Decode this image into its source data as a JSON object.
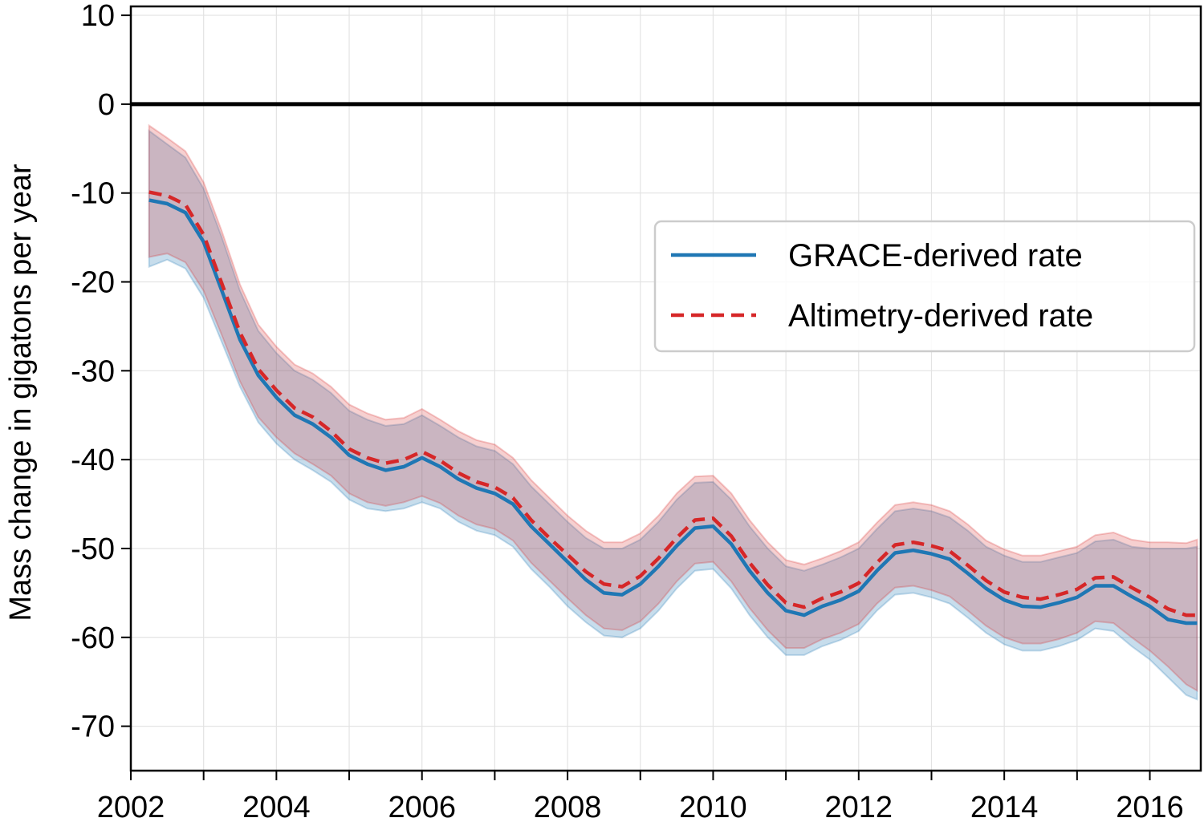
{
  "chart_data": {
    "type": "line",
    "xlabel": "",
    "ylabel": "Mass change in gigatons per year",
    "xlim": [
      2002,
      2016.7
    ],
    "ylim": [
      -75,
      11
    ],
    "x_ticks": [
      2002,
      2004,
      2006,
      2008,
      2010,
      2012,
      2014,
      2016
    ],
    "x_tick_labels": [
      "2002",
      "2004",
      "2006",
      "2008",
      "2010",
      "2012",
      "2014",
      "2016"
    ],
    "x_minor_ticks": [
      2003,
      2005,
      2007,
      2009,
      2011,
      2013,
      2015
    ],
    "y_ticks": [
      10,
      0,
      -10,
      -20,
      -30,
      -40,
      -50,
      -60,
      -70
    ],
    "y_tick_labels": [
      "10",
      "0",
      "-10",
      "-20",
      "-30",
      "-40",
      "-50",
      "-60",
      "-70"
    ],
    "grid": true,
    "zero_line": 0,
    "legend": {
      "position": "right",
      "entries": [
        "GRACE-derived rate",
        "Altimetry-derived rate"
      ]
    },
    "x": [
      2002.25,
      2002.5,
      2002.75,
      2003.0,
      2003.25,
      2003.5,
      2003.75,
      2004.0,
      2004.25,
      2004.5,
      2004.75,
      2005.0,
      2005.25,
      2005.5,
      2005.75,
      2006.0,
      2006.25,
      2006.5,
      2006.75,
      2007.0,
      2007.25,
      2007.5,
      2007.75,
      2008.0,
      2008.25,
      2008.5,
      2008.75,
      2009.0,
      2009.25,
      2009.5,
      2009.75,
      2010.0,
      2010.25,
      2010.5,
      2010.75,
      2011.0,
      2011.25,
      2011.5,
      2011.75,
      2012.0,
      2012.25,
      2012.5,
      2012.75,
      2013.0,
      2013.25,
      2013.5,
      2013.75,
      2014.0,
      2014.25,
      2014.5,
      2014.75,
      2015.0,
      2015.25,
      2015.5,
      2015.75,
      2016.0,
      2016.25,
      2016.5,
      2016.65
    ],
    "series": [
      {
        "name": "GRACE-derived rate",
        "color": "#1f77b4",
        "style": "solid",
        "values": [
          -10.8,
          -11.2,
          -12.2,
          -15.5,
          -21.0,
          -26.5,
          -30.5,
          -33.0,
          -35.0,
          -36.0,
          -37.5,
          -39.5,
          -40.5,
          -41.2,
          -40.8,
          -39.8,
          -40.8,
          -42.2,
          -43.2,
          -43.8,
          -45.0,
          -47.5,
          -49.5,
          -51.5,
          -53.5,
          -55.0,
          -55.2,
          -54.0,
          -52.0,
          -49.7,
          -47.7,
          -47.5,
          -49.5,
          -52.5,
          -55.0,
          -57.0,
          -57.5,
          -56.5,
          -55.8,
          -54.8,
          -52.5,
          -50.5,
          -50.2,
          -50.6,
          -51.2,
          -52.8,
          -54.5,
          -55.8,
          -56.5,
          -56.6,
          -56.1,
          -55.5,
          -54.2,
          -54.2,
          -55.4,
          -56.5,
          -58.0,
          -58.4,
          -58.4
        ],
        "lower": [
          -18.3,
          -17.5,
          -18.5,
          -21.8,
          -26.8,
          -31.8,
          -35.8,
          -38.2,
          -40.0,
          -41.2,
          -42.5,
          -44.5,
          -45.5,
          -45.8,
          -45.5,
          -44.8,
          -45.5,
          -47.0,
          -48.0,
          -48.5,
          -49.8,
          -52.3,
          -54.3,
          -56.5,
          -58.3,
          -59.8,
          -60.0,
          -59.0,
          -57.0,
          -54.5,
          -52.5,
          -52.3,
          -54.5,
          -57.5,
          -60.0,
          -62.0,
          -62.0,
          -61.0,
          -60.3,
          -59.3,
          -57.0,
          -55.2,
          -55.0,
          -55.5,
          -56.2,
          -57.8,
          -59.5,
          -60.8,
          -61.5,
          -61.5,
          -61.0,
          -60.3,
          -59.0,
          -59.3,
          -61.0,
          -62.5,
          -64.5,
          -66.5,
          -67.0
        ],
        "upper": [
          -3.0,
          -4.5,
          -6.0,
          -9.5,
          -15.0,
          -21.0,
          -25.5,
          -28.0,
          -30.0,
          -31.0,
          -32.5,
          -34.5,
          -35.5,
          -36.2,
          -36.0,
          -35.0,
          -36.2,
          -37.5,
          -38.5,
          -39.0,
          -40.5,
          -43.0,
          -45.0,
          -47.0,
          -48.8,
          -50.0,
          -50.0,
          -49.0,
          -47.0,
          -44.5,
          -42.6,
          -42.5,
          -44.5,
          -47.5,
          -50.0,
          -52.0,
          -52.5,
          -51.8,
          -51.0,
          -50.0,
          -47.8,
          -45.8,
          -45.5,
          -45.8,
          -46.5,
          -48.0,
          -49.8,
          -50.8,
          -51.5,
          -51.5,
          -51.0,
          -50.5,
          -49.2,
          -49.0,
          -49.8,
          -50.0,
          -50.0,
          -50.0,
          -49.8
        ]
      },
      {
        "name": "Altimetry-derived rate",
        "color": "#d62728",
        "style": "dashed",
        "values": [
          -9.9,
          -10.3,
          -11.3,
          -14.7,
          -20.2,
          -25.7,
          -29.8,
          -32.2,
          -34.2,
          -35.2,
          -36.8,
          -38.8,
          -39.8,
          -40.4,
          -40.0,
          -39.1,
          -40.1,
          -41.5,
          -42.5,
          -43.1,
          -44.3,
          -46.8,
          -48.8,
          -50.7,
          -52.6,
          -54.0,
          -54.3,
          -53.1,
          -51.1,
          -48.8,
          -46.8,
          -46.6,
          -48.6,
          -51.6,
          -54.1,
          -56.1,
          -56.6,
          -55.6,
          -54.9,
          -53.9,
          -51.6,
          -49.6,
          -49.3,
          -49.7,
          -50.3,
          -51.9,
          -53.6,
          -54.9,
          -55.5,
          -55.7,
          -55.2,
          -54.6,
          -53.3,
          -53.2,
          -54.4,
          -55.5,
          -56.8,
          -57.5,
          -57.5
        ],
        "lower": [
          -17.2,
          -16.8,
          -17.8,
          -21.0,
          -26.0,
          -31.2,
          -35.2,
          -37.5,
          -39.3,
          -40.5,
          -41.8,
          -43.8,
          -44.8,
          -45.2,
          -44.8,
          -44.1,
          -44.9,
          -46.3,
          -47.3,
          -47.8,
          -49.1,
          -51.6,
          -53.6,
          -55.6,
          -57.5,
          -59.0,
          -59.2,
          -58.2,
          -56.2,
          -53.7,
          -51.7,
          -51.5,
          -53.7,
          -56.7,
          -59.2,
          -61.2,
          -61.2,
          -60.2,
          -59.5,
          -58.5,
          -56.2,
          -54.4,
          -54.2,
          -54.7,
          -55.4,
          -57.0,
          -58.7,
          -60.0,
          -60.7,
          -60.7,
          -60.2,
          -59.5,
          -58.2,
          -58.4,
          -60.0,
          -61.5,
          -63.3,
          -65.3,
          -66.0
        ],
        "upper": [
          -2.4,
          -3.8,
          -5.3,
          -8.8,
          -14.3,
          -20.3,
          -24.8,
          -27.3,
          -29.3,
          -30.3,
          -31.8,
          -33.8,
          -34.8,
          -35.5,
          -35.3,
          -34.3,
          -35.5,
          -36.8,
          -37.8,
          -38.3,
          -39.8,
          -42.3,
          -44.3,
          -46.3,
          -48.0,
          -49.3,
          -49.3,
          -48.3,
          -46.3,
          -43.8,
          -41.9,
          -41.8,
          -43.8,
          -46.8,
          -49.3,
          -51.3,
          -51.8,
          -51.1,
          -50.3,
          -49.3,
          -47.1,
          -45.1,
          -44.8,
          -45.1,
          -45.8,
          -47.3,
          -49.1,
          -50.1,
          -50.8,
          -50.8,
          -50.3,
          -49.8,
          -48.5,
          -48.2,
          -49.0,
          -49.3,
          -49.3,
          -49.4,
          -49.0
        ]
      }
    ]
  }
}
